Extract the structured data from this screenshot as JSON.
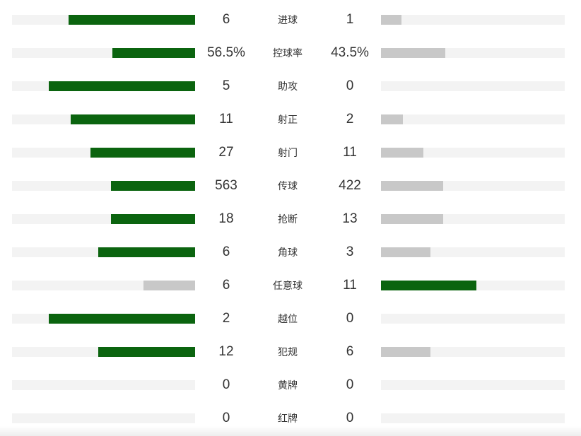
{
  "colors": {
    "leader": "#0b640f",
    "trailer": "#c8c8c8",
    "track": "#f3f3f3",
    "text": "#333333"
  },
  "chart_data": {
    "type": "bar",
    "orientation": "horizontal-diverging",
    "grid": false,
    "legend": "none",
    "categories": [
      "进球",
      "控球率",
      "助攻",
      "射正",
      "射门",
      "传球",
      "抢断",
      "角球",
      "任意球",
      "越位",
      "犯规",
      "黄牌",
      "红牌"
    ],
    "series": [
      {
        "values": [
          6,
          56.5,
          5,
          11,
          27,
          563,
          18,
          6,
          6,
          2,
          12,
          0,
          0
        ],
        "labels": [
          "6",
          "56.5%",
          "5",
          "11",
          "27",
          "563",
          "18",
          "6",
          "6",
          "2",
          "12",
          "0",
          "0"
        ],
        "bar_fill_fraction": [
          0.69,
          0.45,
          0.8,
          0.68,
          0.57,
          0.46,
          0.46,
          0.53,
          0.28,
          0.8,
          0.53,
          0,
          0
        ]
      },
      {
        "values": [
          1,
          43.5,
          0,
          2,
          11,
          422,
          13,
          3,
          11,
          0,
          6,
          0,
          0
        ],
        "labels": [
          "1",
          "43.5%",
          "0",
          "2",
          "11",
          "422",
          "13",
          "3",
          "11",
          "0",
          "6",
          "0",
          "0"
        ],
        "bar_fill_fraction": [
          0.11,
          0.35,
          0,
          0.12,
          0.23,
          0.34,
          0.34,
          0.27,
          0.52,
          0,
          0.27,
          0,
          0
        ]
      }
    ]
  }
}
